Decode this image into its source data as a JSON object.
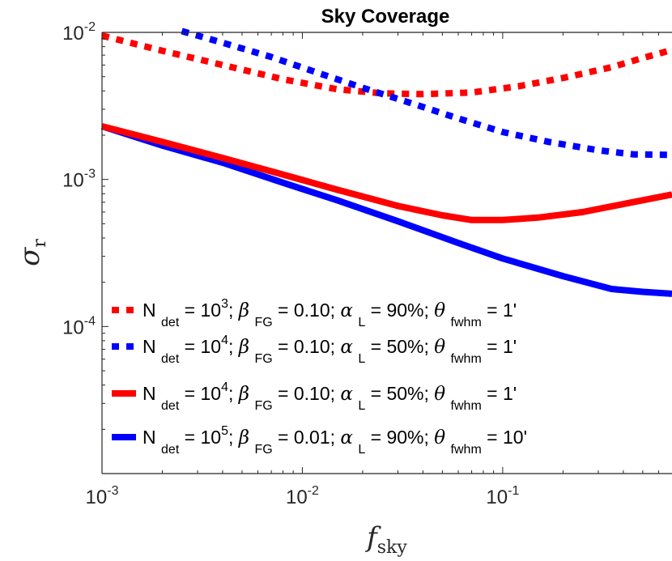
{
  "chart_data": {
    "type": "line",
    "title": "Sky Coverage",
    "xlabel": {
      "main": "f",
      "sub": "sky"
    },
    "ylabel": {
      "main": "σ",
      "sub": "r"
    },
    "xscale": "log",
    "yscale": "log",
    "xlim": [
      0.001,
      0.7
    ],
    "ylim": [
      1e-05,
      0.01
    ],
    "x_ticks": [
      {
        "base": "10",
        "exp": "-3",
        "value": 0.001
      },
      {
        "base": "10",
        "exp": "-2",
        "value": 0.01
      },
      {
        "base": "10",
        "exp": "-1",
        "value": 0.1
      }
    ],
    "y_ticks": [
      {
        "base": "10",
        "exp": "-2",
        "value": 0.01
      },
      {
        "base": "10",
        "exp": "-3",
        "value": 0.001
      },
      {
        "base": "10",
        "exp": "-4",
        "value": 0.0001
      }
    ],
    "legend_position": "bottom-left",
    "series": [
      {
        "name": "N_det = 10^3; β_FG = 0.10; α_L = 90%; θ_fwhm = 1'",
        "color": "#ff0000",
        "style": "dotted",
        "legend": {
          "n": "3",
          "beta": "0.10",
          "alpha": "90%",
          "theta": "1'"
        },
        "x": [
          0.001,
          0.002,
          0.004,
          0.008,
          0.015,
          0.025,
          0.04,
          0.07,
          0.12,
          0.2,
          0.35,
          0.5,
          0.7
        ],
        "y": [
          0.0095,
          0.0075,
          0.006,
          0.0048,
          0.0041,
          0.00385,
          0.0038,
          0.0039,
          0.0043,
          0.0049,
          0.0058,
          0.0067,
          0.0076
        ]
      },
      {
        "name": "N_det = 10^4; β_FG = 0.10; α_L = 50%; θ_fwhm = 1'",
        "color": "#0000ff",
        "style": "dotted",
        "legend": {
          "n": "4",
          "beta": "0.10",
          "alpha": "50%",
          "theta": "1'"
        },
        "x": [
          0.0025,
          0.004,
          0.007,
          0.012,
          0.02,
          0.035,
          0.06,
          0.1,
          0.17,
          0.3,
          0.45,
          0.7
        ],
        "y": [
          0.0102,
          0.0085,
          0.0068,
          0.0053,
          0.0042,
          0.0033,
          0.0026,
          0.0021,
          0.0018,
          0.00158,
          0.00148,
          0.00147
        ]
      },
      {
        "name": "N_det = 10^4; β_FG = 0.10; α_L = 50%; θ_fwhm = 1'",
        "color": "#ff0000",
        "style": "solid",
        "legend": {
          "n": "4",
          "beta": "0.10",
          "alpha": "50%",
          "theta": "1'"
        },
        "x": [
          0.001,
          0.002,
          0.004,
          0.008,
          0.015,
          0.03,
          0.05,
          0.07,
          0.1,
          0.15,
          0.25,
          0.4,
          0.7
        ],
        "y": [
          0.0023,
          0.0018,
          0.0014,
          0.00108,
          0.00085,
          0.00066,
          0.00057,
          0.00053,
          0.00053,
          0.00055,
          0.0006,
          0.00068,
          0.00079
        ]
      },
      {
        "name": "N_det = 10^5; β_FG = 0.01; α_L = 90%; θ_fwhm = 10'",
        "color": "#0000ff",
        "style": "solid",
        "legend": {
          "n": "5",
          "beta": "0.01",
          "alpha": "90%",
          "theta": "10'"
        },
        "x": [
          0.001,
          0.002,
          0.004,
          0.008,
          0.015,
          0.03,
          0.06,
          0.1,
          0.2,
          0.35,
          0.5,
          0.7
        ],
        "y": [
          0.0023,
          0.0017,
          0.0013,
          0.00095,
          0.00072,
          0.00052,
          0.00037,
          0.00029,
          0.00022,
          0.00018,
          0.000172,
          0.000167
        ]
      }
    ],
    "legend_labels": {
      "n": "N",
      "det": "det",
      "eq": "= 10",
      "beta": "β",
      "fg": "FG",
      "alpha": "α",
      "l": "L",
      "theta": "θ",
      "fwhm": "fwhm"
    }
  }
}
